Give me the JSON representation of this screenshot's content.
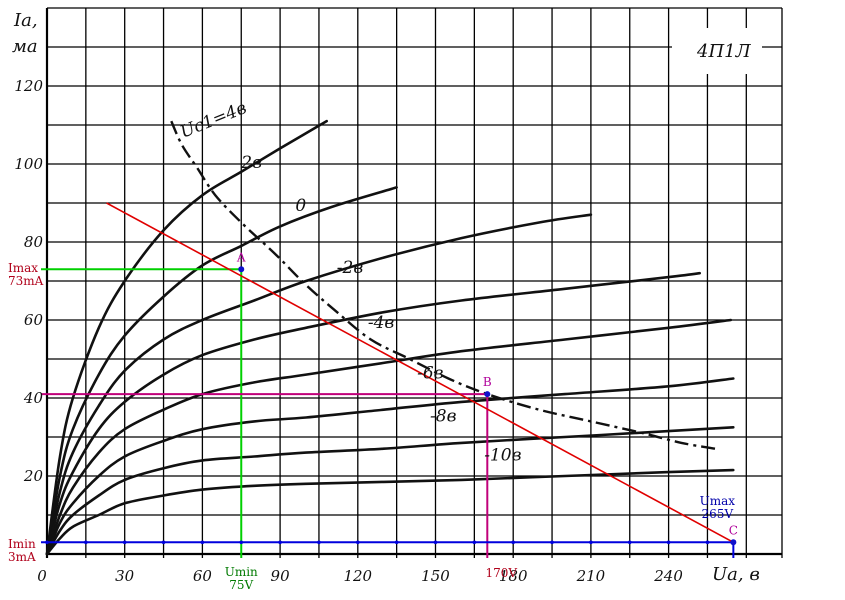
{
  "chart_data": {
    "type": "line",
    "title": "4П1Л",
    "xlabel": "Ua, в",
    "ylabel_main": "Ia,",
    "ylabel_unit": "ма",
    "xlim": [
      0,
      270
    ],
    "ylim": [
      0,
      130
    ],
    "x_ticks": [
      0,
      30,
      60,
      90,
      120,
      150,
      180,
      210,
      240
    ],
    "y_ticks": [
      20,
      40,
      60,
      80,
      100,
      120
    ],
    "grid": true,
    "series": [
      {
        "name": "Uc1=4в",
        "points": [
          [
            0,
            0
          ],
          [
            5,
            25
          ],
          [
            10,
            40
          ],
          [
            20,
            58
          ],
          [
            30,
            70
          ],
          [
            45,
            83
          ],
          [
            60,
            92
          ],
          [
            75,
            98
          ],
          [
            90,
            104
          ],
          [
            108,
            111
          ]
        ]
      },
      {
        "name": "2в",
        "points": [
          [
            0,
            0
          ],
          [
            5,
            20
          ],
          [
            10,
            32
          ],
          [
            20,
            46
          ],
          [
            30,
            56
          ],
          [
            45,
            66
          ],
          [
            60,
            74
          ],
          [
            75,
            79
          ],
          [
            90,
            84
          ],
          [
            110,
            89
          ],
          [
            135,
            94
          ]
        ]
      },
      {
        "name": "0",
        "points": [
          [
            0,
            0
          ],
          [
            5,
            16
          ],
          [
            10,
            26
          ],
          [
            20,
            38
          ],
          [
            30,
            47
          ],
          [
            45,
            55
          ],
          [
            60,
            60
          ],
          [
            80,
            65
          ],
          [
            100,
            70
          ],
          [
            130,
            76
          ],
          [
            160,
            81
          ],
          [
            190,
            85
          ],
          [
            210,
            87
          ]
        ]
      },
      {
        "name": "-2в",
        "points": [
          [
            0,
            0
          ],
          [
            5,
            13
          ],
          [
            10,
            21
          ],
          [
            20,
            32
          ],
          [
            30,
            39
          ],
          [
            45,
            46
          ],
          [
            60,
            51
          ],
          [
            80,
            55
          ],
          [
            100,
            58
          ],
          [
            130,
            62
          ],
          [
            160,
            65
          ],
          [
            200,
            68
          ],
          [
            240,
            71
          ],
          [
            252,
            72
          ]
        ]
      },
      {
        "name": "-4в",
        "points": [
          [
            0,
            0
          ],
          [
            5,
            10
          ],
          [
            10,
            17
          ],
          [
            20,
            26
          ],
          [
            30,
            32
          ],
          [
            45,
            37
          ],
          [
            60,
            41
          ],
          [
            80,
            44
          ],
          [
            100,
            46
          ],
          [
            130,
            49
          ],
          [
            160,
            52
          ],
          [
            200,
            55
          ],
          [
            240,
            58
          ],
          [
            264,
            60
          ]
        ]
      },
      {
        "name": "-6в",
        "points": [
          [
            0,
            0
          ],
          [
            5,
            8
          ],
          [
            10,
            13
          ],
          [
            20,
            20
          ],
          [
            30,
            25
          ],
          [
            45,
            29
          ],
          [
            60,
            32
          ],
          [
            80,
            34
          ],
          [
            100,
            35
          ],
          [
            130,
            37
          ],
          [
            160,
            39
          ],
          [
            200,
            41
          ],
          [
            240,
            43
          ],
          [
            265,
            45
          ]
        ]
      },
      {
        "name": "-8в",
        "points": [
          [
            0,
            0
          ],
          [
            5,
            6
          ],
          [
            10,
            10
          ],
          [
            20,
            15
          ],
          [
            30,
            19
          ],
          [
            45,
            22
          ],
          [
            60,
            24
          ],
          [
            80,
            25
          ],
          [
            100,
            26
          ],
          [
            130,
            27
          ],
          [
            160,
            28.5
          ],
          [
            200,
            30
          ],
          [
            240,
            31.5
          ],
          [
            265,
            32.5
          ]
        ]
      },
      {
        "name": "-10в",
        "points": [
          [
            0,
            0
          ],
          [
            5,
            4
          ],
          [
            10,
            7
          ],
          [
            20,
            10
          ],
          [
            30,
            13
          ],
          [
            45,
            15
          ],
          [
            60,
            16.5
          ],
          [
            80,
            17.5
          ],
          [
            100,
            18
          ],
          [
            130,
            18.5
          ],
          [
            160,
            19
          ],
          [
            200,
            20
          ],
          [
            240,
            21
          ],
          [
            265,
            21.5
          ]
        ]
      }
    ],
    "curve_labels": [
      {
        "text": "Uc1=4в",
        "x": 65,
        "y": 110
      },
      {
        "text": "2в",
        "x": 79,
        "y": 99
      },
      {
        "text": "0",
        "x": 98,
        "y": 88
      },
      {
        "text": "-2в",
        "x": 117,
        "y": 72
      },
      {
        "text": "-4в",
        "x": 129,
        "y": 58
      },
      {
        "text": "-6в",
        "x": 148,
        "y": 45
      },
      {
        "text": "-8в",
        "x": 153,
        "y": 34
      },
      {
        "text": "-10в",
        "x": 176,
        "y": 24
      }
    ],
    "dissipation_curve": [
      [
        48,
        111
      ],
      [
        52,
        105
      ],
      [
        58,
        99
      ],
      [
        65,
        92
      ],
      [
        75,
        85
      ],
      [
        88,
        77
      ],
      [
        100,
        69
      ],
      [
        112,
        62
      ],
      [
        125,
        55
      ],
      [
        140,
        50
      ],
      [
        155,
        45
      ],
      [
        170,
        41
      ],
      [
        190,
        37
      ],
      [
        210,
        34
      ],
      [
        230,
        31
      ],
      [
        245,
        28.5
      ],
      [
        258,
        27
      ]
    ],
    "load_line": {
      "from": [
        23,
        90
      ],
      "to": [
        265,
        3
      ]
    },
    "reference_lines": [
      {
        "color": "#00d000",
        "value_x": 75,
        "value_y": 73
      },
      {
        "color": "#c0007a",
        "value_x": 170,
        "value_y": 41
      },
      {
        "color": "#0000dd",
        "value_x": 265,
        "value_y": 3
      }
    ],
    "points": [
      {
        "label": "A",
        "x": 75,
        "y": 73
      },
      {
        "label": "B",
        "x": 170,
        "y": 41
      },
      {
        "label": "C",
        "x": 265,
        "y": 3
      }
    ],
    "annotations": {
      "imax": [
        "Imax",
        "73mA"
      ],
      "imin": [
        "Imin",
        "3mA"
      ],
      "umin": [
        "Umin",
        "75V"
      ],
      "u170": "170V",
      "umax": [
        "Umax",
        "265V"
      ]
    },
    "colors": {
      "grid": "#000000",
      "curve": "#111111",
      "load_line": "#e00000",
      "annotation_red": "#b0001a",
      "annotation_green": "#007a00",
      "annotation_blue": "#0000aa",
      "point_label": "#b0009a"
    }
  }
}
